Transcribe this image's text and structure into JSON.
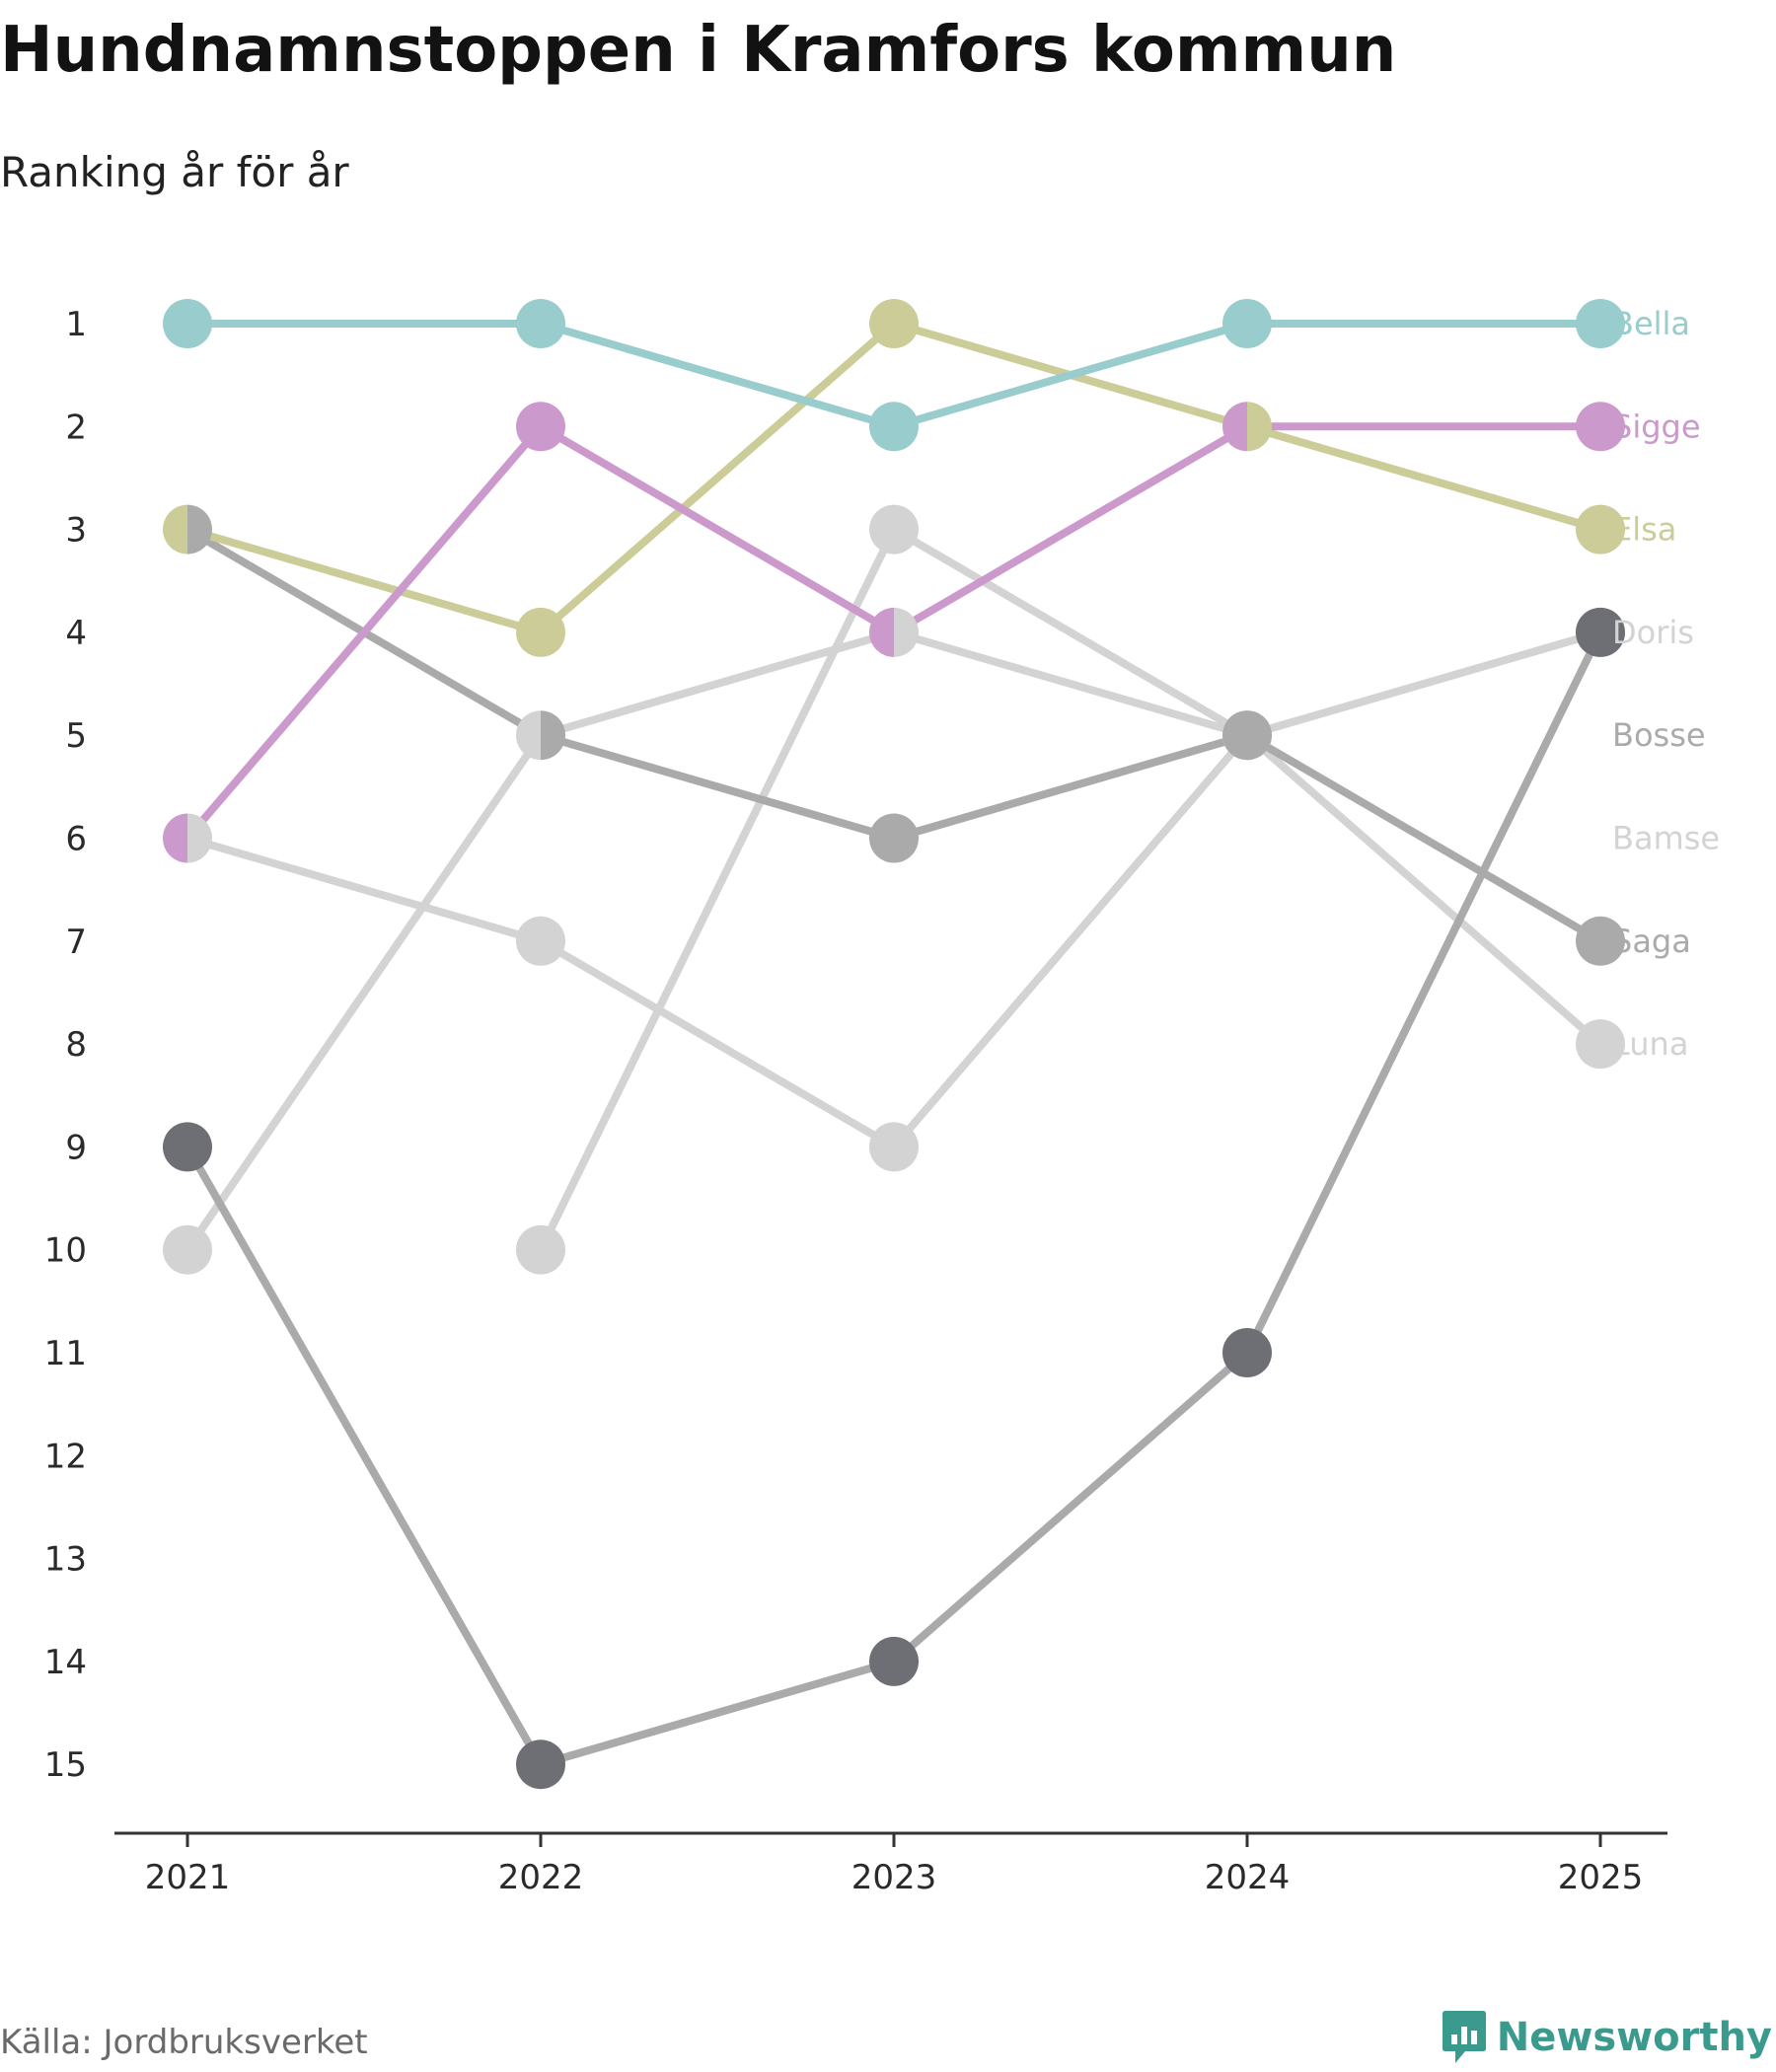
{
  "title": "Hundnamnstoppen i Kramfors kommun",
  "subtitle": "Ranking år för år",
  "source": "Källa: Jordbruksverket",
  "brand": "Newsworthy",
  "chart_data": {
    "type": "line",
    "subtype": "bump",
    "x": [
      "2021",
      "2022",
      "2023",
      "2024",
      "2025"
    ],
    "y_ticks": [
      "1",
      "2",
      "3",
      "4",
      "5",
      "6",
      "7",
      "8",
      "9",
      "10",
      "11",
      "12",
      "13",
      "14",
      "15"
    ],
    "ylim": [
      1,
      15
    ],
    "y_inverted": true,
    "series": [
      {
        "name": "Bamse",
        "color": "#d3d3d3",
        "dot_color": "#d3d3d3",
        "values": [
          10,
          5,
          4,
          5,
          null
        ]
      },
      {
        "name": "Luna",
        "color": "#d3d3d3",
        "dot_color": "#d3d3d3",
        "values": [
          null,
          10,
          3,
          5,
          8
        ]
      },
      {
        "name": "Doris",
        "color": "#d3d3d3",
        "dot_color": "#d3d3d3",
        "values": [
          6,
          7,
          9,
          5,
          4
        ]
      },
      {
        "name": "Saga",
        "color": "#aaaaaa",
        "dot_color": "#aaaaaa",
        "values": [
          3,
          5,
          6,
          5,
          7
        ]
      },
      {
        "name": "Bosse",
        "color": "#aaaaaa",
        "dot_color": "#6e6e75",
        "values": [
          9,
          15,
          14,
          11,
          4
        ]
      },
      {
        "name": "Elsa",
        "color": "#cccc99",
        "dot_color": "#cccc99",
        "values": [
          3,
          4,
          1,
          2,
          3
        ]
      },
      {
        "name": "Sigge",
        "color": "#cc99cc",
        "dot_color": "#cc99cc",
        "values": [
          6,
          2,
          4,
          2,
          2
        ]
      },
      {
        "name": "Bella",
        "color": "#99cccc",
        "dot_color": "#99cccc",
        "values": [
          1,
          1,
          2,
          1,
          1
        ]
      }
    ],
    "end_labels": [
      {
        "name": "Bella",
        "rank": 1,
        "color": "#99cccc"
      },
      {
        "name": "Sigge",
        "rank": 2,
        "color": "#cc99cc"
      },
      {
        "name": "Elsa",
        "rank": 3,
        "color": "#cccc99"
      },
      {
        "name": "Doris",
        "rank": 4,
        "color": "#d3d3d3"
      },
      {
        "name": "Bosse",
        "rank": 5,
        "color": "#aaaaaa"
      },
      {
        "name": "Bamse",
        "rank": 6,
        "color": "#d3d3d3"
      },
      {
        "name": "Saga",
        "rank": 7,
        "color": "#aaaaaa"
      },
      {
        "name": "Luna",
        "rank": 8,
        "color": "#d3d3d3"
      }
    ],
    "shared_dots": [
      {
        "year": "2021",
        "rank": 3,
        "left": "Elsa",
        "right": "Saga"
      },
      {
        "year": "2021",
        "rank": 6,
        "left": "Sigge",
        "right": "Doris"
      },
      {
        "year": "2022",
        "rank": 5,
        "left": "Bamse",
        "right": "Saga"
      },
      {
        "year": "2023",
        "rank": 4,
        "left": "Sigge",
        "right": "Bamse"
      },
      {
        "year": "2024",
        "rank": 2,
        "left": "Sigge",
        "right": "Elsa"
      }
    ]
  }
}
